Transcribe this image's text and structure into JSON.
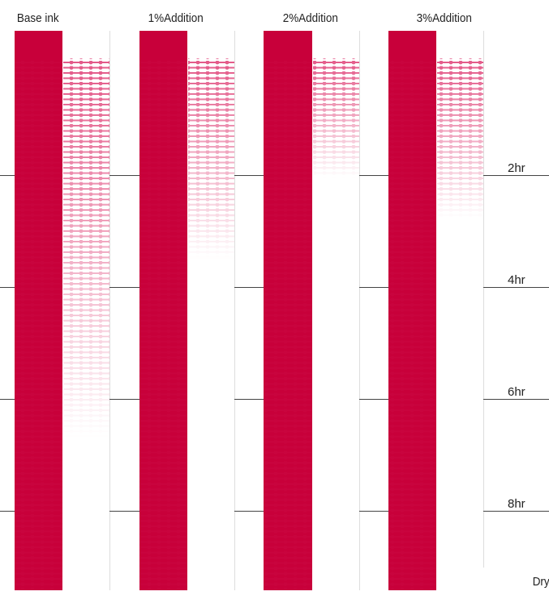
{
  "columns": [
    {
      "label": "Base ink"
    },
    {
      "label": "1%Addition"
    },
    {
      "label": "2%Addition"
    },
    {
      "label": "3%Addition"
    }
  ],
  "time_axis": {
    "title": "Drying time",
    "ticks": [
      "2hr",
      "4hr",
      "6hr",
      "8hr"
    ]
  }
}
